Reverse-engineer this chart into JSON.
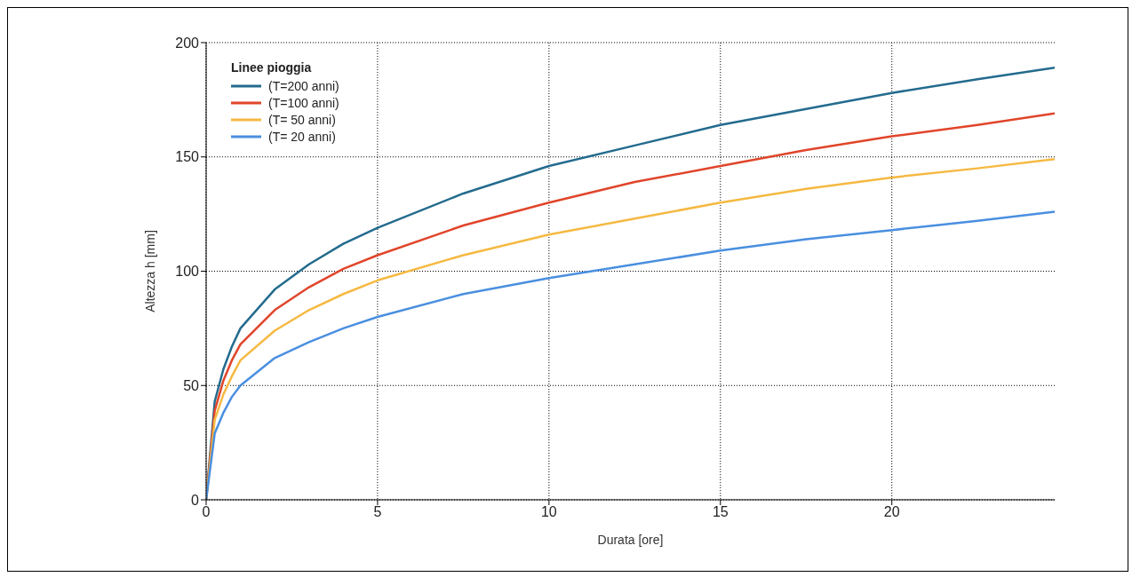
{
  "chart_data": {
    "type": "line",
    "xlabel": "Durata [ore]",
    "ylabel": "Altezza h [mm]",
    "legend_title": "Linee pioggia",
    "x": [
      0,
      0.25,
      0.5,
      0.75,
      1,
      2,
      3,
      4,
      5,
      7.5,
      10,
      12.5,
      15,
      17.5,
      20,
      22.5,
      24.75
    ],
    "series": [
      {
        "name": "(T=200 anni)",
        "color": "#236b8e",
        "values": [
          0,
          43,
          57,
          67,
          75,
          92,
          103,
          112,
          119,
          134,
          146,
          155,
          164,
          171,
          178,
          184,
          189
        ]
      },
      {
        "name": "(T=100 anni)",
        "color": "#e0452a",
        "values": [
          0,
          39,
          52,
          61,
          68,
          83,
          93,
          101,
          107,
          120,
          130,
          139,
          146,
          153,
          159,
          164,
          169
        ]
      },
      {
        "name": "(T= 50 anni)",
        "color": "#f5b942",
        "values": [
          0,
          35,
          46,
          54,
          61,
          74,
          83,
          90,
          96,
          107,
          116,
          123,
          130,
          136,
          141,
          145,
          149
        ]
      },
      {
        "name": "(T= 20 anni)",
        "color": "#4a8fe0",
        "values": [
          0,
          29,
          38,
          45,
          50,
          62,
          69,
          75,
          80,
          90,
          97,
          103,
          109,
          114,
          118,
          122,
          126
        ]
      }
    ],
    "xlim": [
      0,
      24.75
    ],
    "xticks": [
      0,
      5,
      10,
      15,
      20
    ],
    "ylim": [
      0,
      200
    ],
    "yticks": [
      0,
      50,
      100,
      150,
      200
    ],
    "grid": true,
    "legend": "top left",
    "marker": "none",
    "line_style": "solid"
  }
}
